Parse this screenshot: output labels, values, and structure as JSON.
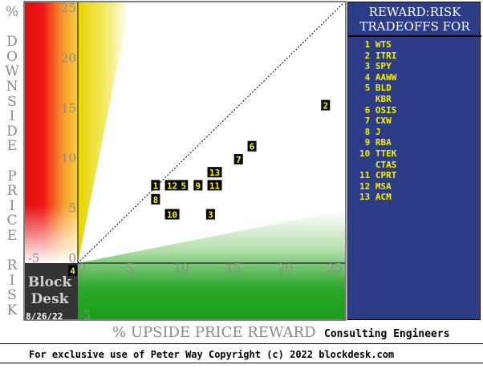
{
  "chart_data": {
    "type": "scatter",
    "title": "REWARD:RISK TRADEOFFS FOR",
    "subtitle": "Consulting Engineers",
    "xlabel": "% UPSIDE PRICE REWARD",
    "ylabel": "% DOWNSIDE PRICE RISK",
    "xlim": [
      -5,
      25
    ],
    "ylim": [
      -5,
      25
    ],
    "x_ticks": [
      "0",
      "5",
      "10",
      "15",
      "20",
      "25"
    ],
    "y_ticks": [
      "25",
      "20",
      "15",
      "10",
      "5",
      "0"
    ],
    "neg_tick_label": "-5",
    "points": [
      {
        "label": "1",
        "x": 7.5,
        "y": 7.3
      },
      {
        "label": "2",
        "x": 23.9,
        "y": 15.3
      },
      {
        "label": "3",
        "x": 12.8,
        "y": 4.4
      },
      {
        "label": "4",
        "x": -0.5,
        "y": -1.2
      },
      {
        "label": "5",
        "x": 10.2,
        "y": 7.3
      },
      {
        "label": "6",
        "x": 16.8,
        "y": 11.2
      },
      {
        "label": "7",
        "x": 15.5,
        "y": 9.9
      },
      {
        "label": "8",
        "x": 7.5,
        "y": 5.9
      },
      {
        "label": "9",
        "x": 11.6,
        "y": 7.3
      },
      {
        "label": "10",
        "x": 9.1,
        "y": 4.4
      },
      {
        "label": "11",
        "x": 13.2,
        "y": 7.3
      },
      {
        "label": "12",
        "x": 9.1,
        "y": 7.3
      },
      {
        "label": "13",
        "x": 13.2,
        "y": 8.6
      }
    ],
    "legend": [
      {
        "num": "1",
        "ticker": "WTS"
      },
      {
        "num": "2",
        "ticker": "ITRI"
      },
      {
        "num": "3",
        "ticker": "SPY"
      },
      {
        "num": "4",
        "ticker": "AAWW"
      },
      {
        "num": "5",
        "ticker": "BLD"
      },
      {
        "num": "",
        "ticker": "KBR"
      },
      {
        "num": "6",
        "ticker": "OSIS"
      },
      {
        "num": "7",
        "ticker": "CXW"
      },
      {
        "num": "8",
        "ticker": "J"
      },
      {
        "num": "9",
        "ticker": "RBA"
      },
      {
        "num": "10",
        "ticker": "TTEK"
      },
      {
        "num": "",
        "ticker": "CTAS"
      },
      {
        "num": "11",
        "ticker": "CPRT"
      },
      {
        "num": "12",
        "ticker": "MSA"
      },
      {
        "num": "13",
        "ticker": "ACM"
      }
    ],
    "colors": {
      "legend_bg": "#2c3c86",
      "legend_text": "#f5f000",
      "marker_bg": "#000000",
      "marker_text": "#ffff00",
      "risk_red": "#e01010",
      "reward_green": "#1a9e1a"
    }
  },
  "brand": {
    "line1": "Block",
    "line2": "Desk",
    "date": "8/26/22"
  },
  "footer": "For exclusive use of Peter Way Copyright (c) 2022 blockdesk.com",
  "corner_tick": "-5"
}
